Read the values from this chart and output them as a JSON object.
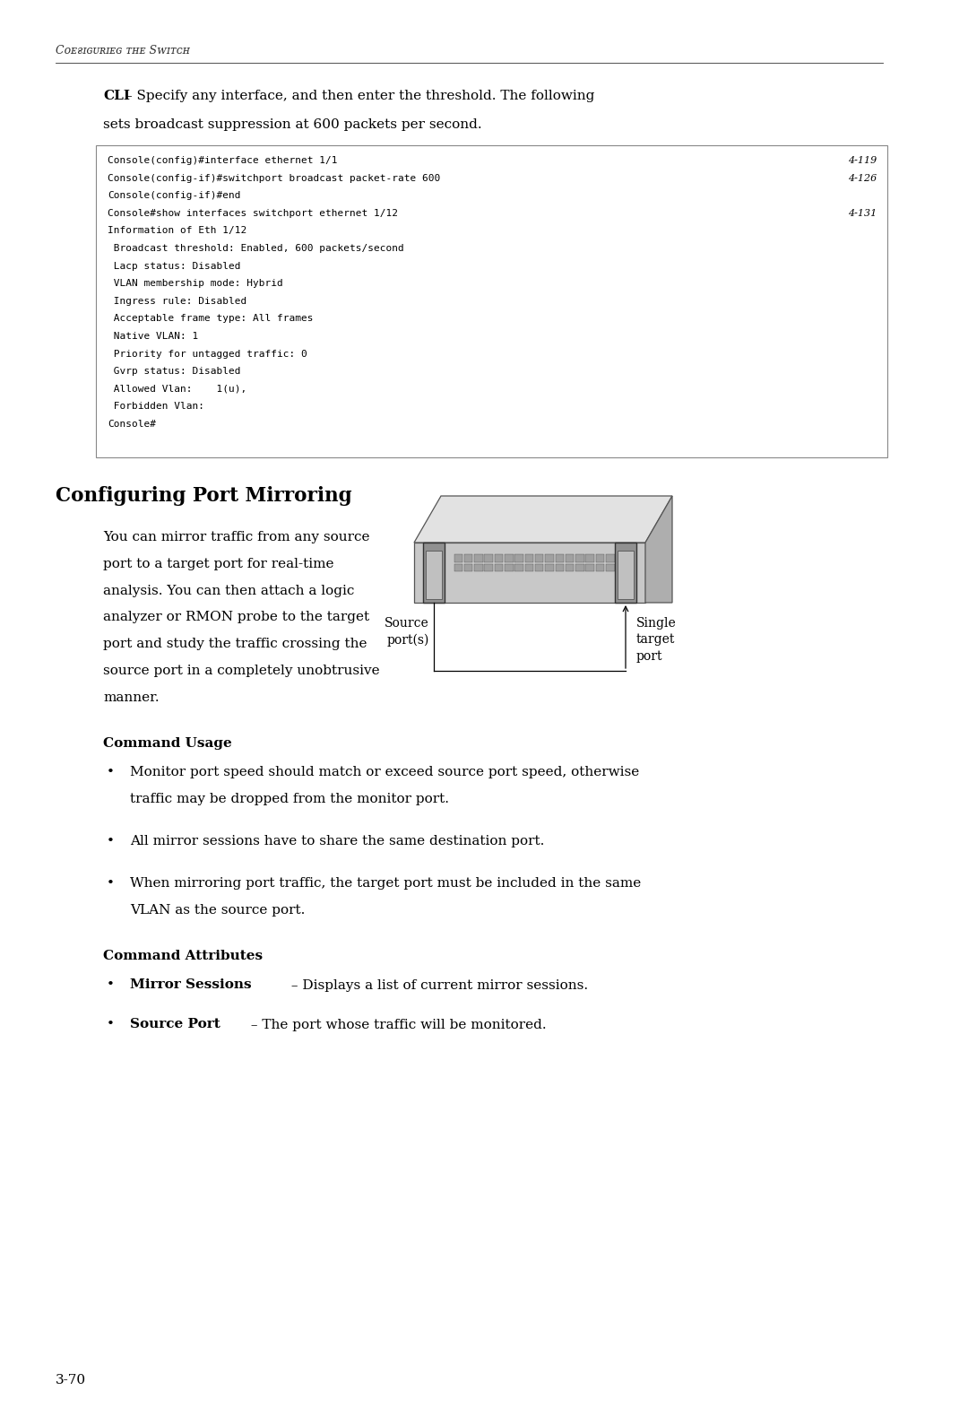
{
  "bg_color": "#ffffff",
  "page_width": 10.8,
  "page_height": 15.7,
  "code_lines": [
    [
      "Console(config)#interface ethernet 1/1",
      "4-119"
    ],
    [
      "Console(config-if)#switchport broadcast packet-rate 600",
      "4-126"
    ],
    [
      "Console(config-if)#end",
      ""
    ],
    [
      "Console#show interfaces switchport ethernet 1/12",
      "4-131"
    ],
    [
      "Information of Eth 1/12",
      ""
    ],
    [
      " Broadcast threshold: Enabled, 600 packets/second",
      ""
    ],
    [
      " Lacp status: Disabled",
      ""
    ],
    [
      " VLAN membership mode: Hybrid",
      ""
    ],
    [
      " Ingress rule: Disabled",
      ""
    ],
    [
      " Acceptable frame type: All frames",
      ""
    ],
    [
      " Native VLAN: 1",
      ""
    ],
    [
      " Priority for untagged traffic: 0",
      ""
    ],
    [
      " Gvrp status: Disabled",
      ""
    ],
    [
      " Allowed Vlan:    1(u),",
      ""
    ],
    [
      " Forbidden Vlan:",
      ""
    ],
    [
      "Console#",
      ""
    ]
  ],
  "section_title": "Configuring Port Mirroring",
  "cmd_usage_title": "Command Usage",
  "cmd_attr_title": "Command Attributes",
  "cmd_attr_bullets": [
    [
      "Mirror Sessions",
      " – Displays a list of current mirror sessions."
    ],
    [
      "Source Port",
      " – The port whose traffic will be monitored."
    ]
  ],
  "page_number": "3-70"
}
